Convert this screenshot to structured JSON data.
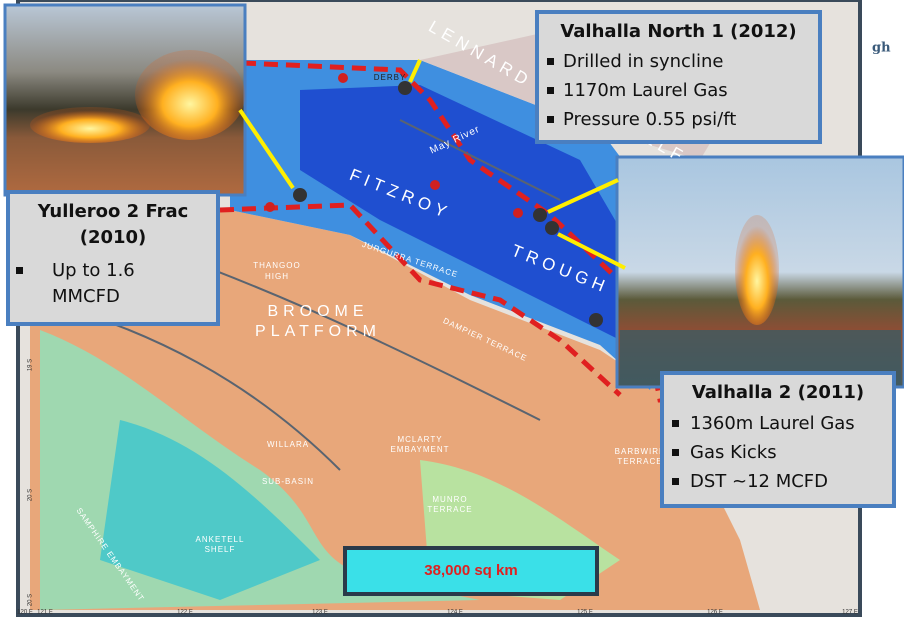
{
  "callouts": [
    {
      "title": "Valhalla North 1 (2012)",
      "bullets": [
        "Drilled in syncline",
        "1170m Laurel Gas",
        "Pressure 0.55 psi/ft"
      ]
    },
    {
      "title": "Yulleroo 2 Frac (2010)",
      "bullets": [
        "Up to 1.6 MMCFD"
      ]
    },
    {
      "title": "Valhalla 2 (2011)",
      "bullets": [
        "1360m Laurel Gas",
        "Gas Kicks",
        "DST ~12 MCFD"
      ]
    }
  ],
  "area_label": "38,000 sq km",
  "map_labels": [
    "LENNARD",
    "SHELF",
    "FITZROY",
    "TROUGH",
    "BROOME",
    "PLATFORM",
    "THANGOO",
    "HIGH",
    "DERBY",
    "May River",
    "DAMPIER TERRACE",
    "MCLARTY",
    "EMBAYMENT",
    "WILLARA",
    "SUB-BASIN",
    "MUNRO",
    "TERRACE",
    "ANKETELL",
    "SHELF",
    "SAMPHIRE EMBAYMENT",
    "BARBWIRE",
    "TERRACE",
    "JURGURRA TERRACE"
  ],
  "longitude_ticks": [
    "120 E",
    "121 E",
    "122 E",
    "123 E",
    "124 E",
    "125 E",
    "126 E",
    "127 E"
  ],
  "latitude_ticks": [
    "19 S",
    "20 S",
    "20 S"
  ],
  "corner_text": "gh"
}
